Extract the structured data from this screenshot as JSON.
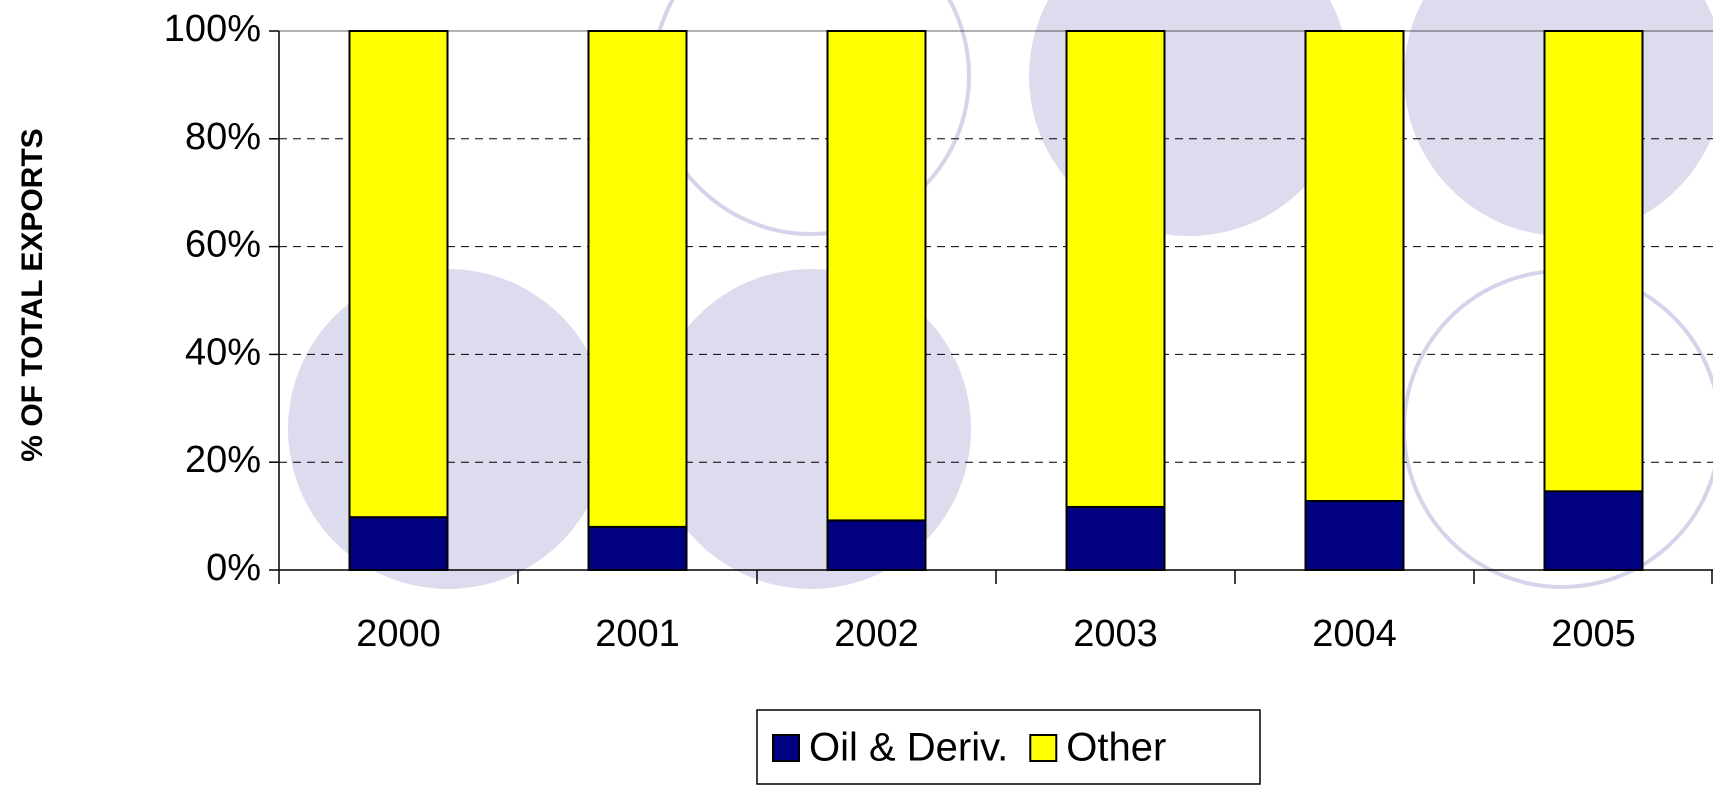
{
  "chart_data": {
    "type": "bar",
    "stacked": true,
    "y_label": "% OF TOTAL EXPORTS",
    "categories": [
      "2000",
      "2001",
      "2002",
      "2003",
      "2004",
      "2005"
    ],
    "series": [
      {
        "name": "Oil & Deriv.",
        "color": "#000080",
        "values": [
          9.8,
          8,
          9.2,
          11.7,
          12.8,
          14.6
        ]
      },
      {
        "name": "Other",
        "color": "#ffff00",
        "values": [
          90.2,
          92,
          90.8,
          88.3,
          87.2,
          85.4
        ]
      }
    ],
    "ylim": [
      0,
      100
    ],
    "yticks": [
      {
        "value": 0,
        "label": "0%"
      },
      {
        "value": 20,
        "label": "20%"
      },
      {
        "value": 40,
        "label": "40%"
      },
      {
        "value": 60,
        "label": "60%"
      },
      {
        "value": 80,
        "label": "80%"
      },
      {
        "value": 100,
        "label": "100%"
      }
    ],
    "grid": true
  }
}
